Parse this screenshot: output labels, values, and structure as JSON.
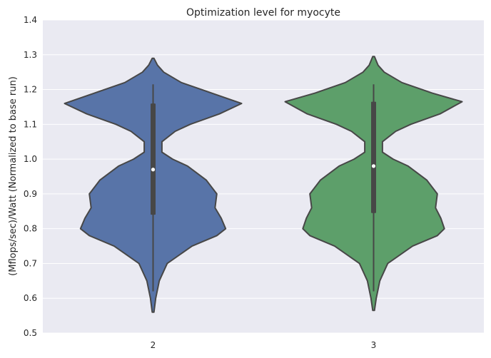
{
  "chart_data": {
    "type": "violin",
    "title": "Optimization level for myocyte",
    "xlabel": "",
    "ylabel": "(Mflops/sec)/Watt (Normalized to base run)",
    "categories": [
      "2",
      "3"
    ],
    "ylim": [
      0.5,
      1.4
    ],
    "yticks": [
      "0.5",
      "0.6",
      "0.7",
      "0.8",
      "0.9",
      "1.0",
      "1.1",
      "1.2",
      "1.3",
      "1.4"
    ],
    "grid": true,
    "colors": {
      "background": "#EAEAF2",
      "grid": "#FFFFFF",
      "outline": "#474747",
      "violins": [
        "#5874A8",
        "#5D9F6A"
      ]
    },
    "violins": [
      {
        "category": "2",
        "median": 0.97,
        "q1": 0.84,
        "q3": 1.16,
        "whisker_low": 0.62,
        "whisker_high": 1.215,
        "min": 0.56,
        "max": 1.29,
        "density": [
          [
            0.56,
            0.01
          ],
          [
            0.6,
            0.03
          ],
          [
            0.65,
            0.07
          ],
          [
            0.7,
            0.16
          ],
          [
            0.75,
            0.44
          ],
          [
            0.78,
            0.72
          ],
          [
            0.8,
            0.82
          ],
          [
            0.83,
            0.77
          ],
          [
            0.86,
            0.7
          ],
          [
            0.9,
            0.72
          ],
          [
            0.94,
            0.6
          ],
          [
            0.98,
            0.39
          ],
          [
            1.0,
            0.22
          ],
          [
            1.02,
            0.1
          ],
          [
            1.05,
            0.1
          ],
          [
            1.08,
            0.25
          ],
          [
            1.1,
            0.42
          ],
          [
            1.13,
            0.75
          ],
          [
            1.16,
            1.0
          ],
          [
            1.19,
            0.66
          ],
          [
            1.22,
            0.32
          ],
          [
            1.25,
            0.12
          ],
          [
            1.27,
            0.05
          ],
          [
            1.29,
            0.01
          ]
        ]
      },
      {
        "category": "3",
        "median": 0.98,
        "q1": 0.845,
        "q3": 1.165,
        "whisker_low": 0.62,
        "whisker_high": 1.215,
        "min": 0.565,
        "max": 1.295,
        "density": [
          [
            0.565,
            0.01
          ],
          [
            0.6,
            0.03
          ],
          [
            0.65,
            0.07
          ],
          [
            0.7,
            0.16
          ],
          [
            0.75,
            0.44
          ],
          [
            0.78,
            0.72
          ],
          [
            0.8,
            0.8
          ],
          [
            0.83,
            0.76
          ],
          [
            0.86,
            0.7
          ],
          [
            0.9,
            0.72
          ],
          [
            0.94,
            0.6
          ],
          [
            0.98,
            0.39
          ],
          [
            1.0,
            0.22
          ],
          [
            1.02,
            0.1
          ],
          [
            1.05,
            0.1
          ],
          [
            1.08,
            0.25
          ],
          [
            1.1,
            0.42
          ],
          [
            1.13,
            0.75
          ],
          [
            1.165,
            1.0
          ],
          [
            1.19,
            0.66
          ],
          [
            1.22,
            0.32
          ],
          [
            1.25,
            0.12
          ],
          [
            1.27,
            0.05
          ],
          [
            1.295,
            0.01
          ]
        ]
      }
    ]
  }
}
